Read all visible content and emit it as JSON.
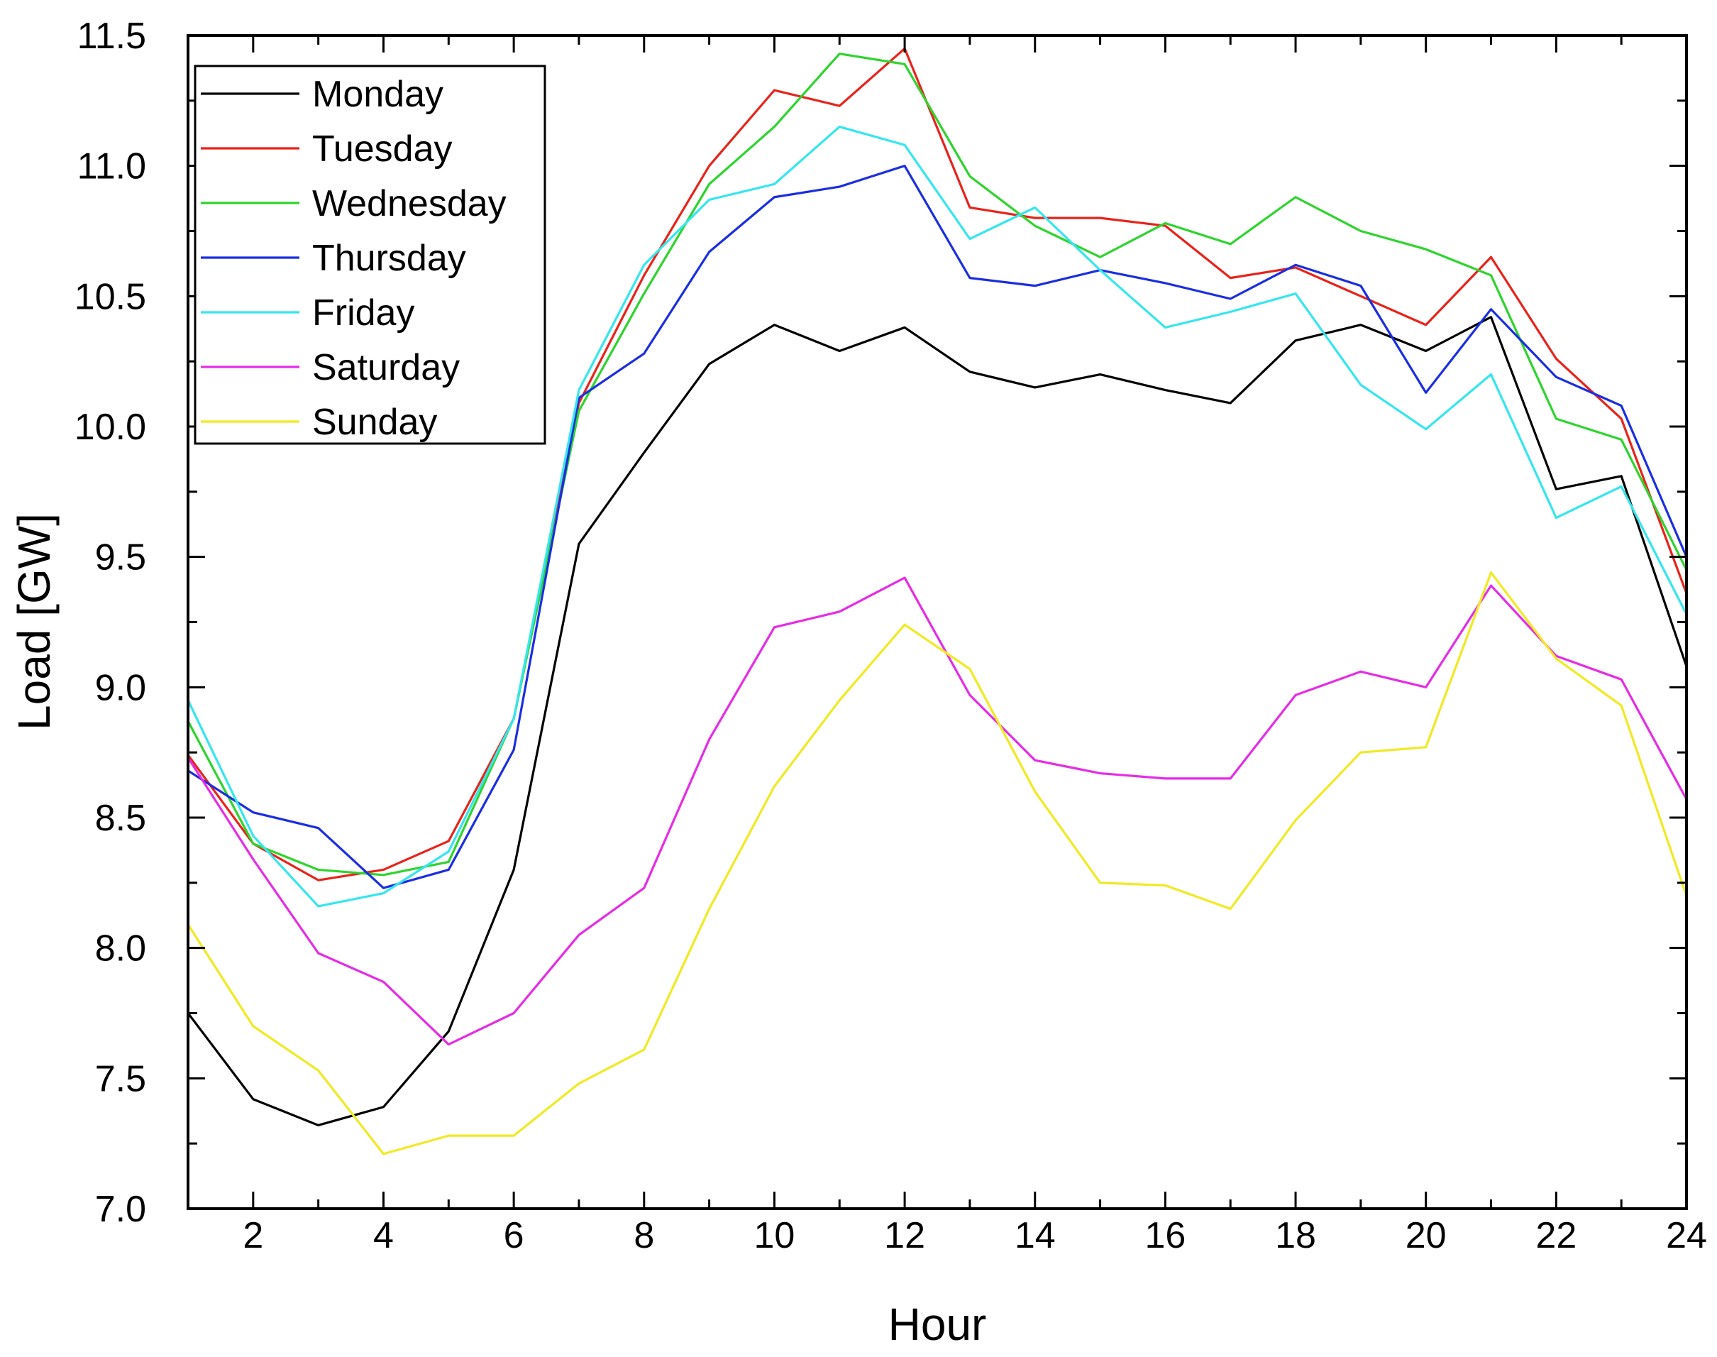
{
  "chart_data": {
    "type": "line",
    "title": "",
    "xlabel": "Hour",
    "ylabel": "Load [GW]",
    "xlim": [
      1,
      24
    ],
    "ylim": [
      7.0,
      11.5
    ],
    "x_ticks": [
      2,
      4,
      6,
      8,
      10,
      12,
      14,
      16,
      18,
      20,
      22,
      24
    ],
    "x_tick_labels": [
      "2",
      "4",
      "6",
      "8",
      "10",
      "12",
      "14",
      "16",
      "18",
      "20",
      "22",
      "24"
    ],
    "y_ticks": [
      7.0,
      7.5,
      8.0,
      8.5,
      9.0,
      9.5,
      10.0,
      10.5,
      11.0,
      11.5
    ],
    "y_tick_labels": [
      "7.0",
      "7.5",
      "8.0",
      "8.5",
      "9.0",
      "9.5",
      "10.0",
      "10.5",
      "11.0",
      "11.5"
    ],
    "grid": false,
    "legend_position": "top-left",
    "x": [
      1,
      2,
      3,
      4,
      5,
      6,
      7,
      8,
      9,
      10,
      11,
      12,
      13,
      14,
      15,
      16,
      17,
      18,
      19,
      20,
      21,
      22,
      23,
      24
    ],
    "series": [
      {
        "name": "Monday",
        "color": "#000000",
        "values": [
          7.75,
          7.42,
          7.32,
          7.39,
          7.68,
          8.3,
          9.55,
          9.9,
          10.24,
          10.39,
          10.29,
          10.38,
          10.21,
          10.15,
          10.2,
          10.14,
          10.09,
          10.33,
          10.39,
          10.29,
          10.42,
          9.76,
          9.81,
          9.08
        ]
      },
      {
        "name": "Tuesday",
        "color": "#e8231b",
        "values": [
          8.74,
          8.4,
          8.26,
          8.3,
          8.41,
          8.88,
          10.09,
          10.58,
          11.0,
          11.29,
          11.23,
          11.45,
          10.84,
          10.8,
          10.8,
          10.77,
          10.57,
          10.61,
          10.5,
          10.39,
          10.65,
          10.26,
          10.03,
          9.36
        ]
      },
      {
        "name": "Wednesday",
        "color": "#2ed42e",
        "values": [
          8.87,
          8.4,
          8.3,
          8.28,
          8.33,
          8.88,
          10.06,
          10.51,
          10.93,
          11.15,
          11.43,
          11.39,
          10.96,
          10.77,
          10.65,
          10.78,
          10.7,
          10.88,
          10.75,
          10.68,
          10.58,
          10.03,
          9.95,
          9.45
        ]
      },
      {
        "name": "Thursday",
        "color": "#1b2ee0",
        "values": [
          8.68,
          8.52,
          8.46,
          8.23,
          8.3,
          8.76,
          10.11,
          10.28,
          10.67,
          10.88,
          10.92,
          11.0,
          10.57,
          10.54,
          10.6,
          10.55,
          10.49,
          10.62,
          10.54,
          10.13,
          10.45,
          10.19,
          10.08,
          9.5
        ]
      },
      {
        "name": "Friday",
        "color": "#35e6ee",
        "values": [
          8.95,
          8.43,
          8.16,
          8.21,
          8.37,
          8.88,
          10.14,
          10.62,
          10.87,
          10.93,
          11.15,
          11.08,
          10.72,
          10.84,
          10.6,
          10.38,
          10.44,
          10.51,
          10.16,
          9.99,
          10.2,
          9.65,
          9.77,
          9.28
        ]
      },
      {
        "name": "Saturday",
        "color": "#e62ce6",
        "values": [
          8.73,
          8.34,
          7.98,
          7.87,
          7.63,
          7.75,
          8.05,
          8.23,
          8.8,
          9.23,
          9.29,
          9.42,
          8.97,
          8.72,
          8.67,
          8.65,
          8.65,
          8.97,
          9.06,
          9.0,
          9.39,
          9.12,
          9.03,
          8.57
        ]
      },
      {
        "name": "Sunday",
        "color": "#f0ea22",
        "values": [
          8.09,
          7.7,
          7.53,
          7.21,
          7.28,
          7.28,
          7.48,
          7.61,
          8.15,
          8.62,
          8.95,
          9.24,
          9.07,
          8.6,
          8.25,
          8.24,
          8.15,
          8.49,
          8.75,
          8.77,
          9.44,
          9.11,
          8.93,
          8.2
        ]
      }
    ]
  }
}
